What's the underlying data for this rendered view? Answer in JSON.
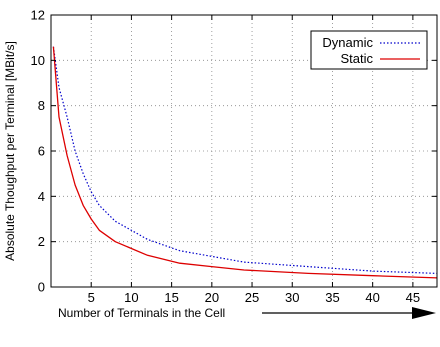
{
  "chart_data": {
    "type": "line",
    "xlabel": "Number of Terminals in the Cell",
    "ylabel": "Absolute Thoughput per Terminal [MBit/s]",
    "xlim": [
      0,
      48
    ],
    "ylim": [
      0,
      12
    ],
    "xticks": [
      "5",
      "10",
      "15",
      "20",
      "25",
      "30",
      "35",
      "40",
      "45"
    ],
    "xtick_values": [
      5,
      10,
      15,
      20,
      25,
      30,
      35,
      40,
      45
    ],
    "yticks": [
      "0",
      "2",
      "4",
      "6",
      "8",
      "10",
      "12"
    ],
    "ytick_values": [
      0,
      2,
      4,
      6,
      8,
      10,
      12
    ],
    "grid": true,
    "legend_position": "top-right",
    "series": [
      {
        "name": "Dynamic",
        "color": "#0000cc",
        "style": "dotted",
        "x": [
          0.3,
          1,
          2,
          3,
          4,
          5,
          6,
          8,
          10,
          12,
          16,
          20,
          24,
          32,
          40,
          48
        ],
        "y": [
          10.6,
          8.8,
          7.5,
          6.0,
          5.0,
          4.2,
          3.6,
          2.9,
          2.5,
          2.1,
          1.6,
          1.35,
          1.1,
          0.9,
          0.7,
          0.6
        ]
      },
      {
        "name": "Static",
        "color": "#dd0000",
        "style": "solid",
        "x": [
          0.3,
          1,
          2,
          3,
          4,
          5,
          6,
          8,
          10,
          12,
          16,
          20,
          24,
          32,
          40,
          48
        ],
        "y": [
          10.6,
          7.5,
          5.8,
          4.5,
          3.6,
          3.0,
          2.5,
          2.0,
          1.7,
          1.4,
          1.05,
          0.9,
          0.75,
          0.6,
          0.5,
          0.4
        ]
      }
    ]
  }
}
